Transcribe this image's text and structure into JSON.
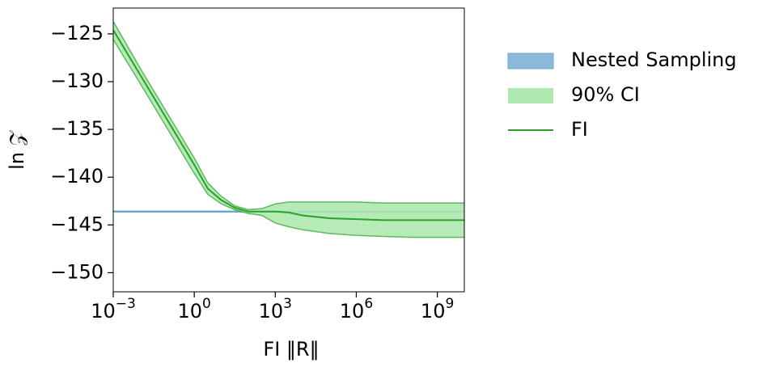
{
  "chart_data": {
    "type": "line",
    "xlabel": "FI ‖R‖",
    "ylabel": "ln 𝒵",
    "xscale": "log",
    "x": [
      0.001,
      0.01,
      0.1,
      1,
      3.16,
      10,
      31.6,
      100,
      316,
      1000,
      3160,
      10000,
      100000,
      1000000,
      10000000,
      100000000,
      1000000000,
      10000000000
    ],
    "series": [
      {
        "name": "Nested Sampling",
        "color": "#6fa8d0",
        "legend_style": "patch",
        "values": [
          -143.6,
          -143.6,
          -143.6,
          -143.6,
          -143.6,
          -143.6,
          -143.6,
          -143.6,
          -143.6,
          -143.6,
          -143.6,
          -143.6,
          -143.6,
          -143.6,
          -143.6,
          -143.6,
          -143.6,
          -143.6
        ]
      },
      {
        "name": "90% CI",
        "color": "#aee8ae",
        "legend_style": "patch",
        "upper": [
          -123.7,
          -128.6,
          -133.3,
          -138.0,
          -140.6,
          -142.0,
          -143.0,
          -143.4,
          -143.3,
          -142.8,
          -142.6,
          -142.6,
          -142.6,
          -142.6,
          -142.7,
          -142.7,
          -142.7,
          -142.7
        ],
        "lower": [
          -125.6,
          -130.2,
          -134.9,
          -139.6,
          -141.8,
          -142.8,
          -143.4,
          -143.8,
          -144.0,
          -144.8,
          -145.2,
          -145.5,
          -145.9,
          -146.1,
          -146.2,
          -146.3,
          -146.3,
          -146.3
        ]
      },
      {
        "name": "FI",
        "color": "#2ca02c",
        "legend_style": "line",
        "values": [
          -124.6,
          -129.3,
          -134.0,
          -138.7,
          -141.2,
          -142.4,
          -143.2,
          -143.6,
          -143.6,
          -143.6,
          -143.7,
          -144.0,
          -144.3,
          -144.4,
          -144.5,
          -144.5,
          -144.5,
          -144.5
        ]
      }
    ],
    "xlim": [
      0.001,
      10000000000
    ],
    "ylim": [
      -152,
      -122.3
    ],
    "xticks": [
      {
        "value": 0.001,
        "label": "10−3"
      },
      {
        "value": 1,
        "label": "100"
      },
      {
        "value": 1000,
        "label": "103"
      },
      {
        "value": 1000000,
        "label": "106"
      },
      {
        "value": 1000000000,
        "label": "109"
      }
    ],
    "yticks": [
      {
        "value": -125,
        "label": "−125"
      },
      {
        "value": -130,
        "label": "−130"
      },
      {
        "value": -135,
        "label": "−135"
      },
      {
        "value": -140,
        "label": "−140"
      },
      {
        "value": -145,
        "label": "−145"
      },
      {
        "value": -150,
        "label": "−150"
      }
    ],
    "grid": false,
    "legend": "outside-right"
  }
}
